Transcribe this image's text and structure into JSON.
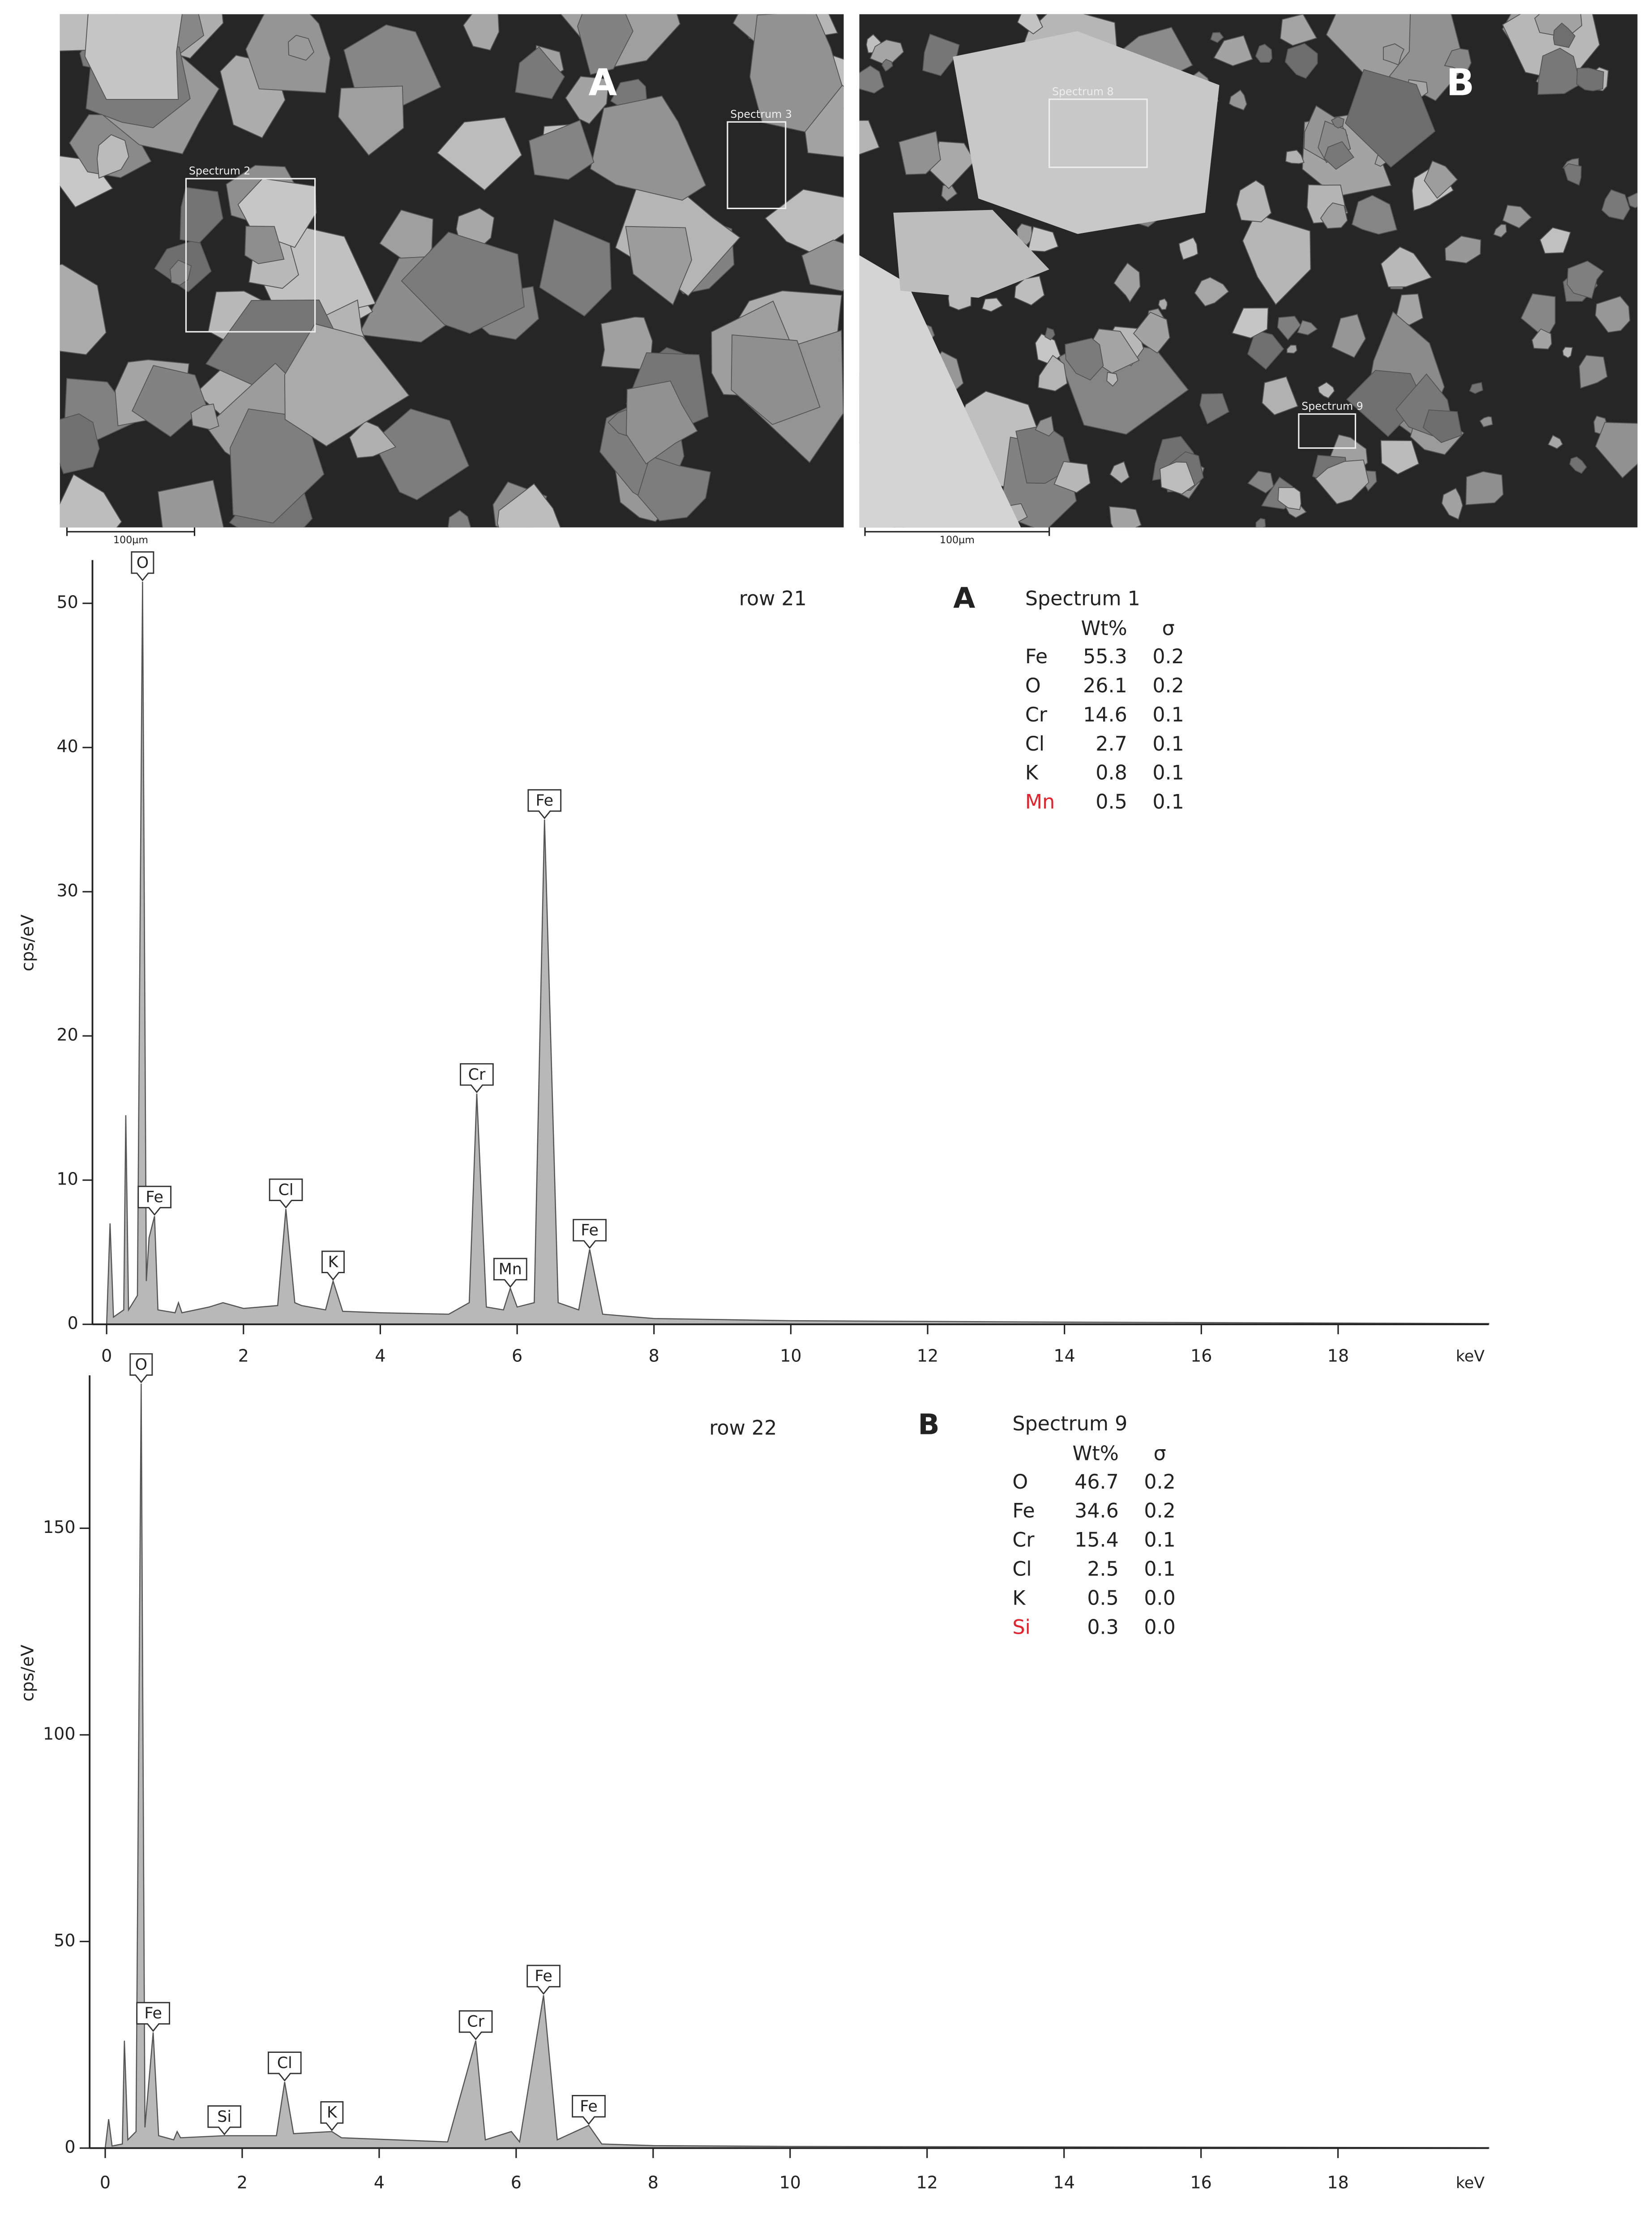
{
  "images": [
    {
      "label": "A",
      "regions": [
        "Spectrum 2",
        "Spectrum 3"
      ],
      "scale_bar": "100µm"
    },
    {
      "label": "B",
      "regions": [
        "Spectrum 8",
        "Spectrum 9"
      ],
      "scale_bar": "100µm"
    }
  ],
  "chart_data": [
    {
      "type": "area",
      "note": "row 21",
      "panel_label": "A",
      "x_label": "keV",
      "y_label": "cps/eV",
      "color": "#b8b8b8",
      "x": [
        0,
        0.05,
        0.1,
        0.25,
        0.28,
        0.32,
        0.45,
        0.525,
        0.58,
        0.62,
        0.7,
        0.75,
        1.0,
        1.05,
        1.1,
        1.5,
        1.7,
        2.0,
        2.5,
        2.62,
        2.75,
        2.85,
        3.2,
        3.31,
        3.45,
        4,
        5,
        5.3,
        5.41,
        5.55,
        5.8,
        5.9,
        6.0,
        6.25,
        6.4,
        6.6,
        6.9,
        7.06,
        7.25,
        8,
        10,
        14,
        20.2
      ],
      "values": [
        0,
        7,
        0.5,
        1,
        14.5,
        1,
        2,
        51.5,
        3,
        6,
        7.5,
        1,
        0.8,
        1.5,
        0.8,
        1.2,
        1.5,
        1.1,
        1.3,
        8,
        1.5,
        1.3,
        1.0,
        3,
        0.9,
        0.8,
        0.7,
        1.5,
        16,
        1.2,
        1,
        2.5,
        1.2,
        1.5,
        35,
        1.5,
        1.0,
        5.2,
        0.7,
        0.4,
        0.25,
        0.15,
        0.05
      ],
      "xlim": [
        0,
        20.2
      ],
      "ylim": [
        0,
        53
      ],
      "xticks": [
        0,
        2,
        4,
        6,
        8,
        10,
        12,
        14,
        16,
        18
      ],
      "yticks": [
        0,
        10,
        20,
        30,
        40,
        50
      ],
      "peaks": [
        {
          "label": "O",
          "x": 0.525,
          "y": 51.5
        },
        {
          "label": "Fe",
          "x": 0.7,
          "y": 7.5
        },
        {
          "label": "Cl",
          "x": 2.62,
          "y": 8
        },
        {
          "label": "K",
          "x": 3.31,
          "y": 3
        },
        {
          "label": "Cr",
          "x": 5.41,
          "y": 16
        },
        {
          "label": "Mn",
          "x": 5.9,
          "y": 2.5
        },
        {
          "label": "Fe",
          "x": 6.4,
          "y": 35
        },
        {
          "label": "Fe",
          "x": 7.06,
          "y": 5.2
        }
      ],
      "table": {
        "title": "Spectrum 1",
        "columns": [
          "Wt%",
          "σ"
        ],
        "rows": [
          {
            "element": "Fe",
            "wt": "55.3",
            "sigma": "0.2"
          },
          {
            "element": "O",
            "wt": "26.1",
            "sigma": "0.2"
          },
          {
            "element": "Cr",
            "wt": "14.6",
            "sigma": "0.1"
          },
          {
            "element": "Cl",
            "wt": "2.7",
            "sigma": "0.1"
          },
          {
            "element": "K",
            "wt": "0.8",
            "sigma": "0.1"
          },
          {
            "element": "Mn",
            "wt": "0.5",
            "sigma": "0.1",
            "color": "#e3222b"
          }
        ]
      }
    },
    {
      "type": "area",
      "note": "row 22",
      "panel_label": "B",
      "x_label": "keV",
      "y_label": "cps/eV",
      "color": "#b8b8b8",
      "x": [
        0,
        0.05,
        0.1,
        0.25,
        0.28,
        0.33,
        0.45,
        0.525,
        0.58,
        0.7,
        0.78,
        1.0,
        1.05,
        1.1,
        1.74,
        2.0,
        2.5,
        2.62,
        2.75,
        3.31,
        3.45,
        5.0,
        5.41,
        5.55,
        5.93,
        6.05,
        6.4,
        6.6,
        7.06,
        7.25,
        8,
        10,
        20.2
      ],
      "values": [
        0,
        7,
        0.5,
        1,
        26,
        2,
        4,
        185,
        5,
        28,
        3,
        2,
        4,
        2.5,
        3,
        3,
        3,
        16,
        3.5,
        4,
        2.5,
        1.5,
        26,
        2,
        4,
        1.5,
        37,
        2,
        5.5,
        1,
        0.6,
        0.4,
        0.1
      ],
      "xlim": [
        0,
        20.2
      ],
      "ylim": [
        0,
        187
      ],
      "xticks": [
        0,
        2,
        4,
        6,
        8,
        10,
        12,
        14,
        16,
        18
      ],
      "yticks": [
        0,
        50,
        100,
        150
      ],
      "peaks": [
        {
          "label": "O",
          "x": 0.525,
          "y": 185
        },
        {
          "label": "Fe",
          "x": 0.7,
          "y": 28
        },
        {
          "label": "Si",
          "x": 1.74,
          "y": 3
        },
        {
          "label": "Cl",
          "x": 2.62,
          "y": 16
        },
        {
          "label": "K",
          "x": 3.31,
          "y": 4
        },
        {
          "label": "Cr",
          "x": 5.41,
          "y": 26
        },
        {
          "label": "Fe",
          "x": 6.4,
          "y": 37
        },
        {
          "label": "Fe",
          "x": 7.06,
          "y": 5.5
        }
      ],
      "table": {
        "title": "Spectrum 9",
        "columns": [
          "Wt%",
          "σ"
        ],
        "rows": [
          {
            "element": "O",
            "wt": "46.7",
            "sigma": "0.2"
          },
          {
            "element": "Fe",
            "wt": "34.6",
            "sigma": "0.2"
          },
          {
            "element": "Cr",
            "wt": "15.4",
            "sigma": "0.1"
          },
          {
            "element": "Cl",
            "wt": "2.5",
            "sigma": "0.1"
          },
          {
            "element": "K",
            "wt": "0.5",
            "sigma": "0.0"
          },
          {
            "element": "Si",
            "wt": "0.3",
            "sigma": "0.0",
            "color": "#e3222b"
          }
        ]
      }
    }
  ]
}
